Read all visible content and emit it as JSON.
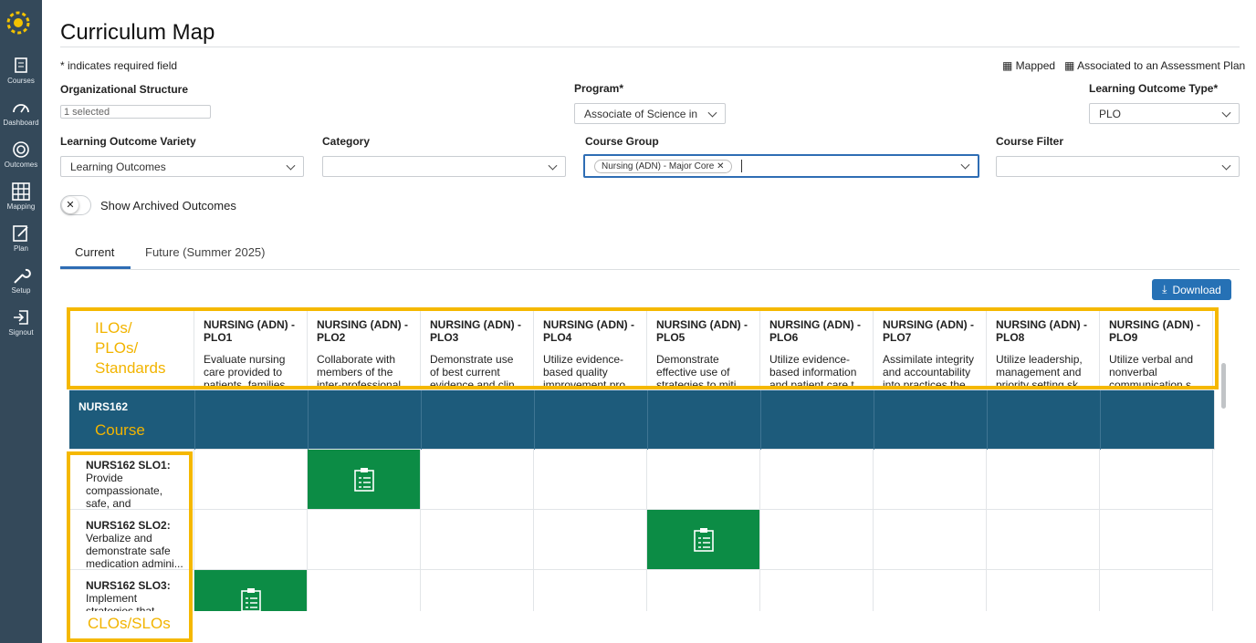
{
  "sidebar": {
    "items": [
      "Courses",
      "Dashboard",
      "Outcomes",
      "Mapping",
      "Plan",
      "Setup",
      "Signout"
    ]
  },
  "header": {
    "title": "Curriculum Map",
    "required_note": "* indicates required field",
    "legend": {
      "mapped": "Mapped",
      "associated": "Associated to an Assessment Plan"
    }
  },
  "filters": {
    "org_structure": {
      "label": "Organizational Structure",
      "value": "1 selected"
    },
    "program": {
      "label": "Program*",
      "value": "Associate of Science in"
    },
    "outcome_type": {
      "label": "Learning Outcome Type*",
      "value": "PLO"
    },
    "outcome_variety": {
      "label": "Learning Outcome Variety",
      "value": "Learning Outcomes"
    },
    "category": {
      "label": "Category"
    },
    "course_group": {
      "label": "Course Group",
      "chip": "Nursing (ADN) - Major Core"
    },
    "course_filter": {
      "label": "Course Filter"
    }
  },
  "toggle": {
    "label": "Show Archived Outcomes"
  },
  "tabs": [
    "Current",
    "Future (Summer 2025)"
  ],
  "download": "Download",
  "annotations": {
    "outcomes": "ILOs/ PLOs/ Standards",
    "course": "Course",
    "slos": "CLOs/SLOs"
  },
  "table": {
    "columns": [
      {
        "code": "NURSING (ADN) - PLO1",
        "text": "Evaluate nursing care provided to patients, families"
      },
      {
        "code": "NURSING (ADN) - PLO2",
        "text": "Collaborate with members of the inter-professional"
      },
      {
        "code": "NURSING (ADN) - PLO3",
        "text": "Demonstrate use of best current evidence and clin"
      },
      {
        "code": "NURSING (ADN) - PLO4",
        "text": "Utilize evidence-based quality improvement pro"
      },
      {
        "code": "NURSING (ADN) - PLO5",
        "text": "Demonstrate effective use of strategies to miti"
      },
      {
        "code": "NURSING (ADN) - PLO6",
        "text": "Utilize evidence-based information and patient care t"
      },
      {
        "code": "NURSING (ADN) - PLO7",
        "text": "Assimilate integrity and accountability into practices the"
      },
      {
        "code": "NURSING (ADN) - PLO8",
        "text": "Utilize leadership, management and priority setting sk"
      },
      {
        "code": "NURSING (ADN) - PLO9",
        "text": "Utilize verbal and nonverbal communication s"
      }
    ],
    "course": "NURS162",
    "rows": [
      {
        "code": "NURS162 SLO1:",
        "text": "Provide compassionate, safe, and culturally...",
        "mapped": [
          false,
          true,
          false,
          false,
          false,
          false,
          false,
          false,
          false
        ]
      },
      {
        "code": "NURS162 SLO2:",
        "text": "Verbalize and demonstrate safe medication admini...",
        "mapped": [
          false,
          false,
          false,
          false,
          true,
          false,
          false,
          false,
          false
        ]
      },
      {
        "code": "NURS162 SLO3:",
        "text": "Implement strategies that minimize risk",
        "mapped": [
          true,
          false,
          false,
          false,
          false,
          false,
          false,
          false,
          false
        ]
      }
    ]
  }
}
